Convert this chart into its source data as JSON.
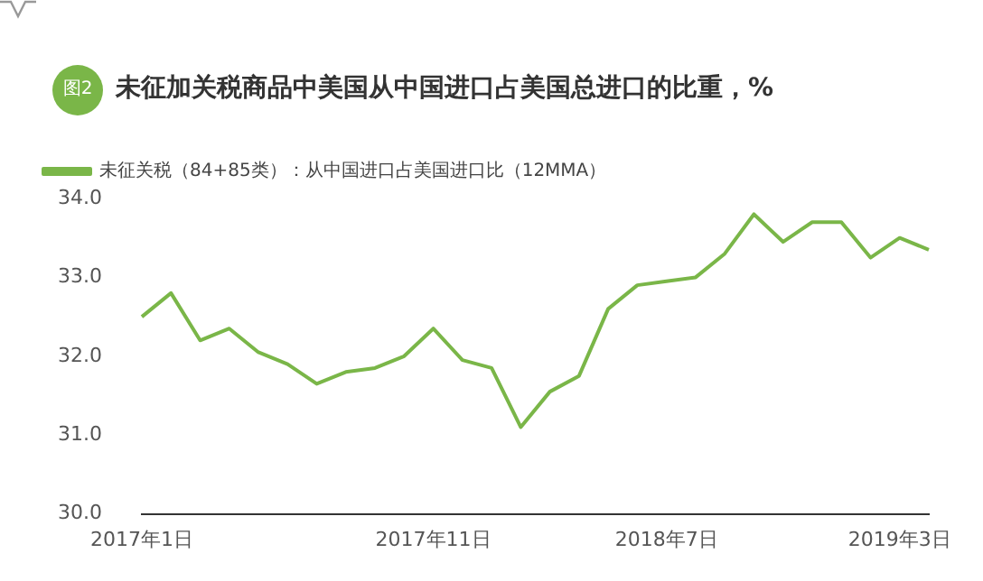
{
  "chart_data": {
    "type": "line",
    "title": "未征加关税商品中美国从中国进口占美国总进口的比重，%",
    "annotations": [
      "图2"
    ],
    "categories": [
      "2017年1日",
      null,
      null,
      null,
      null,
      null,
      null,
      null,
      null,
      null,
      "2017年11日",
      null,
      null,
      null,
      null,
      null,
      null,
      null,
      "2018年7日",
      null,
      null,
      null,
      null,
      null,
      null,
      null,
      "2019年3日",
      null
    ],
    "series": [
      {
        "name": "未征关税（84+85类）：从中国进口占美国进口比（12MMA）",
        "color": "#7ab648",
        "values": [
          32.5,
          32.8,
          32.2,
          32.35,
          32.05,
          31.9,
          31.65,
          31.8,
          31.85,
          32.0,
          32.35,
          31.95,
          31.85,
          31.1,
          31.55,
          31.75,
          32.6,
          32.9,
          32.95,
          33.0,
          33.3,
          33.8,
          33.45,
          33.7,
          33.7,
          33.25,
          33.5,
          33.35
        ]
      }
    ],
    "ylim": [
      30,
      34
    ],
    "yticks": [
      {
        "value": 30,
        "label": "30.0"
      },
      {
        "value": 31,
        "label": "31.0"
      },
      {
        "value": 32,
        "label": "32.0"
      },
      {
        "value": 33,
        "label": "33.0"
      },
      {
        "value": 34,
        "label": "34.0"
      }
    ],
    "grid": false,
    "legend": "top left",
    "marker": "none",
    "line_style": "solid"
  }
}
